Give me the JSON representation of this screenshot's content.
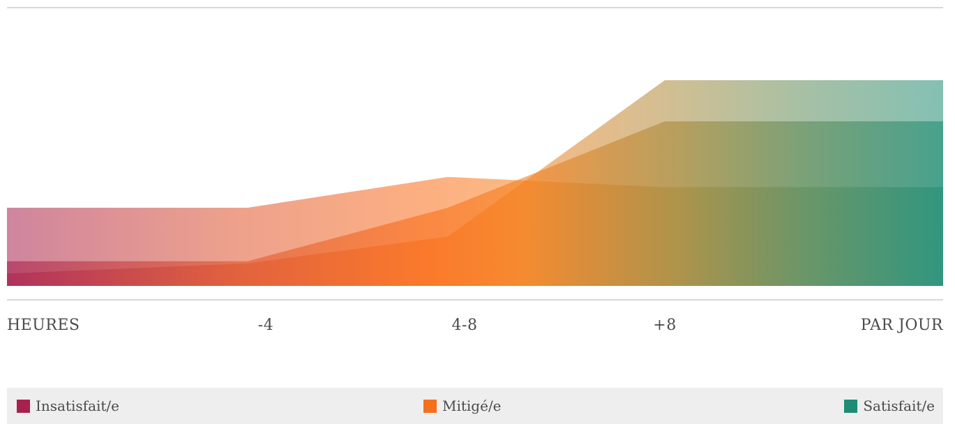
{
  "chart_data": {
    "type": "area",
    "categories": [
      "HEURES",
      "-4",
      "4-8",
      "+8",
      "PAR JOUR"
    ],
    "x_axis_label": "HEURES",
    "y_axis_label": "",
    "ylim": [
      0,
      10
    ],
    "grid": false,
    "legend_position": "bottom",
    "colors": {
      "insatisfait": "#a8214e",
      "mitige": "#f5701a",
      "satisfait": "#1f8c74"
    },
    "layers": [
      {
        "ref": "insatisfait",
        "values": [
          3.8,
          3.8,
          5.3,
          4.8,
          4.8
        ]
      },
      {
        "ref": "mitige",
        "values": [
          0.6,
          1.1,
          2.4,
          10.0,
          10.0
        ]
      },
      {
        "ref": "satisfait",
        "values": [
          1.2,
          1.2,
          3.8,
          8.0,
          8.0
        ]
      }
    ],
    "legend": [
      {
        "label": "Insatisfait/e",
        "color": "#a8214e"
      },
      {
        "label": "Mitigé/e",
        "color": "#f5701a"
      },
      {
        "label": "Satisfait/e",
        "color": "#1f8c74"
      }
    ]
  }
}
